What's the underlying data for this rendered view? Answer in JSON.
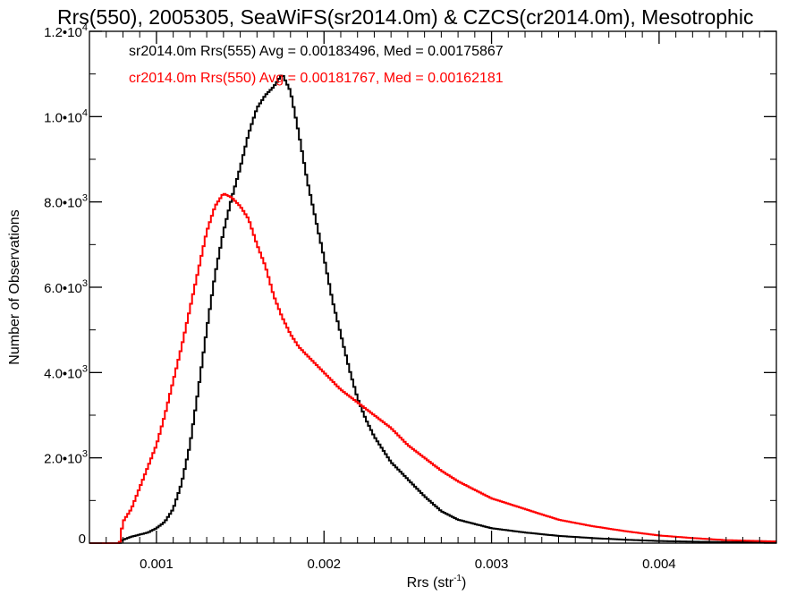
{
  "chart_data": {
    "type": "line",
    "title": "Rrs(550), 2005305, SeaWiFS(sr2014.0m) & CZCS(cr2014.0m), Mesotrophic",
    "xlabel": "Rrs (str",
    "xlabel_sup": "-1",
    "xlabel_end": ")",
    "ylabel": "Number of Observations",
    "xlim": [
      0.0006,
      0.0047
    ],
    "ylim": [
      0,
      12000
    ],
    "grid": false,
    "legend_placement": "top-left",
    "x_ticks": [
      {
        "value": 0.001,
        "label": "0.001"
      },
      {
        "value": 0.002,
        "label": "0.002"
      },
      {
        "value": 0.003,
        "label": "0.003"
      },
      {
        "value": 0.004,
        "label": "0.004"
      }
    ],
    "y_ticks": [
      {
        "value": 0,
        "mant": "0",
        "exp": ""
      },
      {
        "value": 2000,
        "mant": "2.0•10",
        "exp": "3"
      },
      {
        "value": 4000,
        "mant": "4.0•10",
        "exp": "3"
      },
      {
        "value": 6000,
        "mant": "6.0•10",
        "exp": "3"
      },
      {
        "value": 8000,
        "mant": "8.0•10",
        "exp": "3"
      },
      {
        "value": 10000,
        "mant": "1.0•10",
        "exp": "4"
      },
      {
        "value": 12000,
        "mant": "1.2•10",
        "exp": "4"
      }
    ],
    "series": [
      {
        "legend": "sr2014.0m Rrs(555) Avg = 0.00183496, Med = 0.00175867",
        "color": "#000000",
        "x": [
          0.0006,
          0.00078,
          0.0008,
          0.00085,
          0.0009,
          0.00095,
          0.001,
          0.00105,
          0.0011,
          0.00115,
          0.0012,
          0.00125,
          0.0013,
          0.00135,
          0.0014,
          0.00145,
          0.0015,
          0.00155,
          0.0016,
          0.00165,
          0.0017,
          0.00175,
          0.0018,
          0.00185,
          0.0019,
          0.00195,
          0.002,
          0.00205,
          0.0021,
          0.00215,
          0.0022,
          0.00225,
          0.0023,
          0.00235,
          0.0024,
          0.0025,
          0.0026,
          0.0027,
          0.0028,
          0.003,
          0.0032,
          0.0034,
          0.0036,
          0.0038,
          0.004,
          0.0042,
          0.0044,
          0.0047
        ],
        "y": [
          0,
          0,
          80,
          150,
          200,
          250,
          350,
          500,
          800,
          1400,
          2300,
          3600,
          5000,
          6300,
          7300,
          8100,
          8800,
          9600,
          10200,
          10500,
          10700,
          11000,
          10600,
          9600,
          8500,
          7600,
          6700,
          5700,
          4900,
          4100,
          3400,
          2900,
          2500,
          2200,
          1900,
          1500,
          1100,
          750,
          550,
          350,
          250,
          170,
          120,
          80,
          50,
          35,
          25,
          15
        ]
      },
      {
        "legend": "cr2014.0m Rrs(550) Avg = 0.00181767, Med = 0.00162181",
        "color": "#ff0000",
        "x": [
          0.0006,
          0.00078,
          0.0008,
          0.00085,
          0.0009,
          0.00095,
          0.001,
          0.00105,
          0.0011,
          0.00115,
          0.0012,
          0.00125,
          0.0013,
          0.00135,
          0.0014,
          0.00145,
          0.0015,
          0.00155,
          0.0016,
          0.00165,
          0.0017,
          0.00175,
          0.0018,
          0.00185,
          0.0019,
          0.00195,
          0.002,
          0.0021,
          0.0022,
          0.0023,
          0.0024,
          0.0025,
          0.0026,
          0.0027,
          0.0028,
          0.0029,
          0.003,
          0.0032,
          0.0034,
          0.0036,
          0.0038,
          0.004,
          0.0042,
          0.0044,
          0.0047
        ],
        "y": [
          0,
          0,
          500,
          800,
          1300,
          1800,
          2300,
          3000,
          3800,
          4600,
          5500,
          6400,
          7300,
          7900,
          8200,
          8100,
          7900,
          7600,
          7000,
          6500,
          5800,
          5300,
          4900,
          4600,
          4400,
          4200,
          4000,
          3600,
          3300,
          3000,
          2700,
          2300,
          2000,
          1700,
          1450,
          1250,
          1050,
          800,
          550,
          400,
          280,
          180,
          120,
          70,
          40
        ]
      }
    ]
  }
}
